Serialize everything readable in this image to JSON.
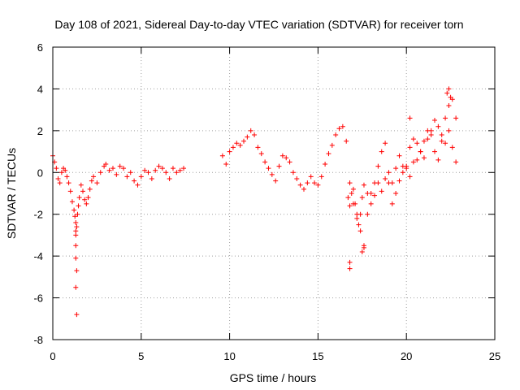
{
  "chart_data": {
    "type": "scatter",
    "title": "Day 108 of 2021, Sidereal Day-to-day VTEC variation (SDTVAR) for receiver torn",
    "xlabel": "GPS time / hours",
    "ylabel": "SDTVAR / TECUs",
    "xlim": [
      0,
      25
    ],
    "ylim": [
      -8,
      6
    ],
    "xticks": [
      0,
      5,
      10,
      15,
      20,
      25
    ],
    "yticks": [
      -8,
      -6,
      -4,
      -2,
      0,
      2,
      4,
      6
    ],
    "grid": true,
    "marker": "+",
    "series": [
      {
        "name": "SDTVAR",
        "color": "#ff0000",
        "x": [
          0.0,
          0.1,
          0.2,
          0.3,
          0.4,
          0.5,
          0.6,
          0.7,
          0.8,
          0.9,
          1.0,
          1.1,
          1.2,
          1.25,
          1.3,
          1.35,
          1.4,
          1.45,
          1.5,
          1.6,
          1.7,
          1.8,
          1.9,
          2.0,
          2.1,
          2.2,
          2.3,
          2.5,
          2.7,
          2.9,
          3.0,
          3.2,
          3.4,
          3.6,
          3.8,
          4.0,
          4.2,
          4.4,
          4.6,
          4.8,
          5.0,
          5.2,
          5.4,
          5.6,
          5.8,
          6.0,
          6.2,
          6.4,
          6.6,
          6.8,
          7.0,
          7.2,
          7.4,
          9.6,
          9.8,
          10.0,
          10.2,
          10.4,
          10.6,
          10.8,
          11.0,
          11.2,
          11.4,
          11.6,
          11.8,
          12.0,
          12.2,
          12.4,
          12.6,
          12.8,
          13.0,
          13.2,
          13.4,
          13.6,
          13.8,
          14.0,
          14.2,
          14.4,
          14.6,
          14.8,
          15.0,
          15.2,
          15.4,
          15.6,
          15.8,
          16.0,
          16.2,
          16.4,
          16.6,
          16.8,
          17.0,
          17.2,
          17.4,
          17.6,
          17.8,
          18.0,
          18.2,
          18.4,
          18.6,
          18.8,
          19.0,
          19.2,
          19.4,
          19.6,
          19.8,
          20.0,
          20.2,
          20.4,
          20.6,
          20.8,
          21.0,
          21.2,
          21.4,
          21.6,
          21.8,
          22.0,
          22.2,
          22.4,
          22.6,
          22.8,
          16.7,
          16.8,
          16.9,
          17.0,
          17.1,
          17.2,
          17.3,
          17.4,
          17.5,
          17.6,
          17.8,
          18.0,
          18.2,
          18.4,
          18.6,
          18.8,
          19.0,
          19.2,
          19.4,
          19.6,
          19.8,
          20.0,
          20.2,
          20.4,
          20.6,
          20.8,
          21.0,
          21.2,
          21.4,
          21.6,
          21.8,
          22.0,
          22.2,
          22.4,
          22.6,
          22.8,
          1.3,
          1.3,
          1.3,
          1.35,
          1.3,
          1.35,
          1.3,
          16.8,
          16.8,
          17.5,
          17.6,
          20.2,
          22.3,
          22.4,
          22.5
        ],
        "y": [
          0.8,
          0.5,
          0.2,
          -0.3,
          -0.5,
          0.0,
          0.2,
          0.1,
          -0.2,
          -0.5,
          -0.9,
          -1.4,
          -1.8,
          -2.1,
          -2.4,
          -2.6,
          -2.0,
          -1.6,
          -1.2,
          -0.6,
          -0.9,
          -1.3,
          -1.5,
          -1.2,
          -0.8,
          -0.4,
          -0.2,
          -0.5,
          0.0,
          0.3,
          0.4,
          0.1,
          0.2,
          -0.1,
          0.3,
          0.2,
          -0.2,
          0.0,
          -0.4,
          -0.6,
          -0.2,
          0.1,
          0.0,
          -0.3,
          0.1,
          0.3,
          0.2,
          0.0,
          -0.3,
          0.2,
          0.0,
          0.1,
          0.2,
          0.8,
          0.4,
          1.0,
          1.2,
          1.4,
          1.3,
          1.5,
          1.7,
          2.0,
          1.8,
          1.2,
          0.9,
          0.5,
          0.2,
          -0.1,
          -0.4,
          0.3,
          0.8,
          0.7,
          0.5,
          0.0,
          -0.3,
          -0.6,
          -0.8,
          -0.5,
          -0.2,
          -0.5,
          -0.6,
          -0.2,
          0.4,
          0.9,
          1.3,
          1.8,
          2.1,
          2.2,
          1.5,
          -0.5,
          -1.5,
          -2.2,
          -2.8,
          -3.5,
          -2.0,
          -1.0,
          -0.5,
          0.3,
          1.0,
          1.4,
          -0.5,
          -1.5,
          -1.0,
          -0.4,
          0.0,
          0.3,
          1.2,
          1.6,
          1.4,
          1.0,
          0.7,
          1.6,
          2.0,
          2.5,
          2.2,
          1.8,
          2.6,
          3.2,
          3.5,
          2.6,
          -1.2,
          -1.6,
          -1.0,
          -0.8,
          -1.5,
          -2.0,
          -2.5,
          -2.0,
          -1.2,
          -0.6,
          -1.0,
          -1.5,
          -1.1,
          -0.5,
          -0.9,
          -0.3,
          0.0,
          -0.5,
          0.2,
          0.8,
          0.3,
          0.2,
          -0.2,
          0.5,
          0.6,
          1.0,
          1.5,
          2.0,
          1.8,
          1.0,
          0.6,
          1.5,
          1.4,
          2.0,
          1.2,
          0.5,
          -3.0,
          -3.5,
          -4.1,
          -4.7,
          -5.5,
          -6.8,
          -2.8,
          -4.6,
          -4.3,
          -3.8,
          -3.6,
          2.6,
          3.8,
          4.0,
          3.6
        ]
      }
    ]
  }
}
